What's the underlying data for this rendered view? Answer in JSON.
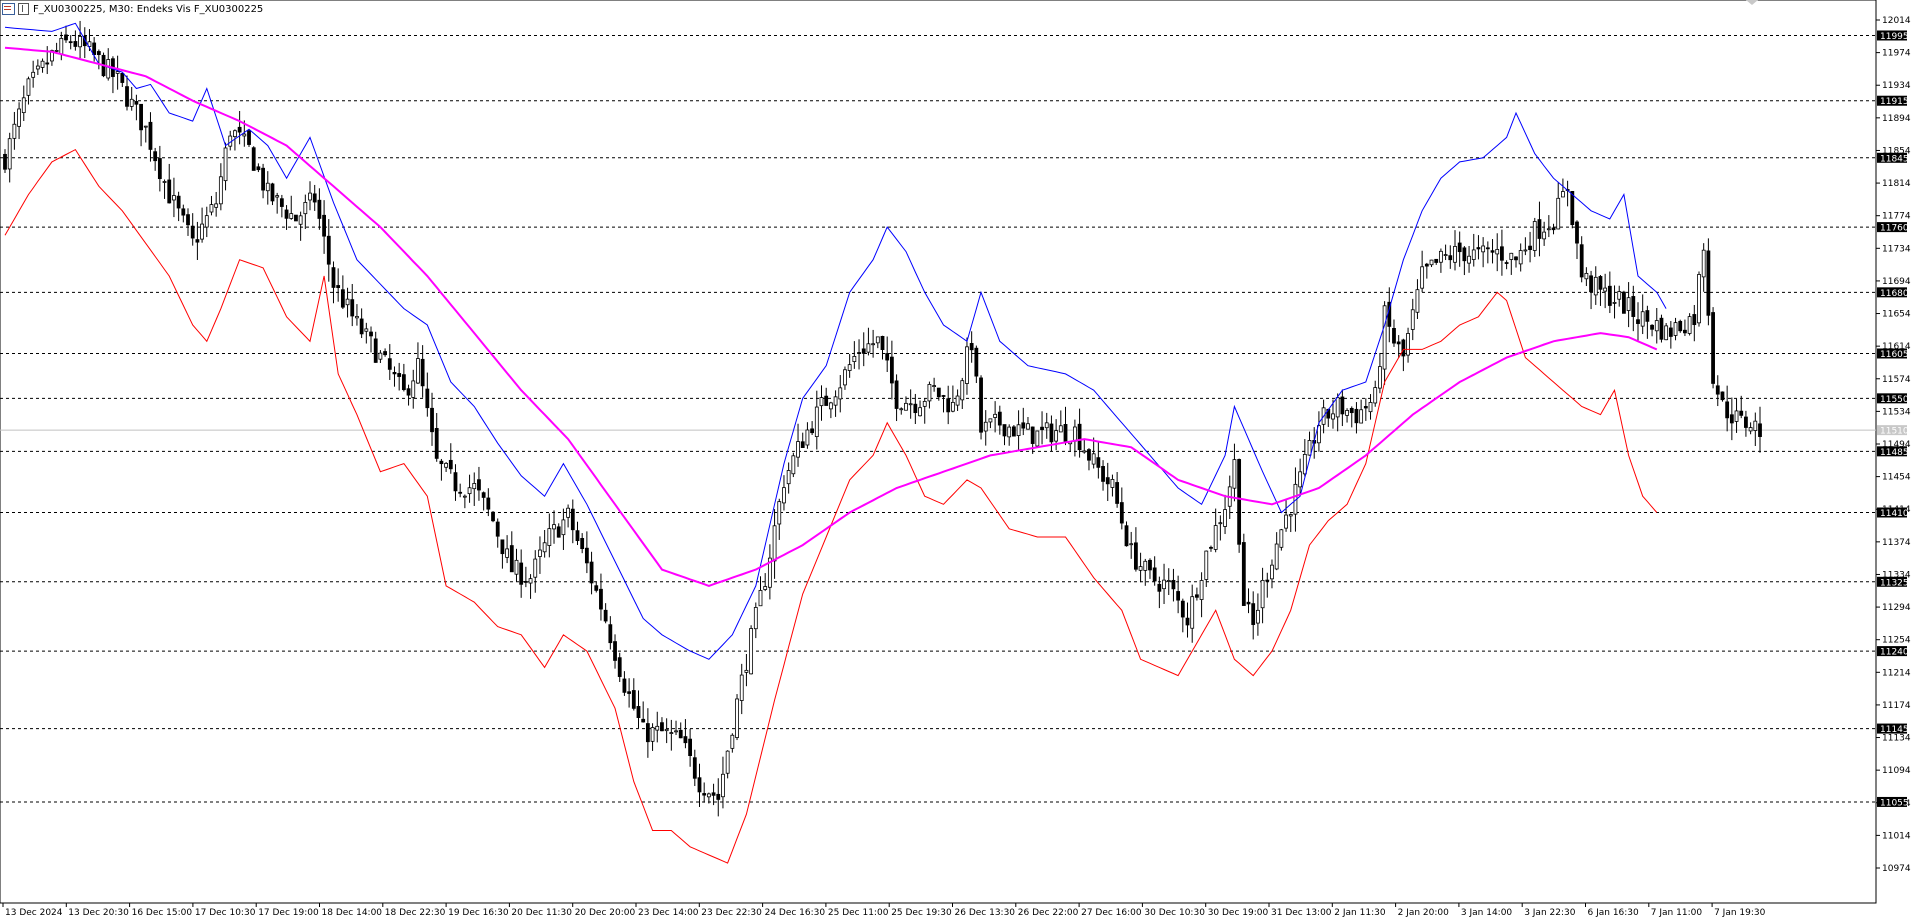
{
  "header": {
    "symbol_line": "F_XU0300225, M30:  Endeks Vis F_XU0300225"
  },
  "chart_data": {
    "type": "candlestick",
    "title": "F_XU0300225, M30:  Endeks Vis F_XU0300225",
    "ylim": [
      10950,
      12030
    ],
    "y_ticks": [
      12014,
      11974,
      11934,
      11894,
      11854,
      11814,
      11774,
      11734,
      11694,
      11654,
      11614,
      11574,
      11534,
      11494,
      11454,
      11414,
      11374,
      11334,
      11294,
      11254,
      11214,
      11174,
      11134,
      11094,
      11054,
      11014,
      10974
    ],
    "x_tick_labels": [
      "13 Dec 2024",
      "13 Dec 20:30",
      "16 Dec 15:00",
      "17 Dec 10:30",
      "17 Dec 19:00",
      "18 Dec 14:00",
      "18 Dec 22:30",
      "19 Dec 16:30",
      "20 Dec 11:30",
      "20 Dec 20:00",
      "23 Dec 14:00",
      "23 Dec 22:30",
      "24 Dec 16:30",
      "25 Dec 11:00",
      "25 Dec 19:30",
      "26 Dec 13:30",
      "26 Dec 22:00",
      "27 Dec 16:00",
      "30 Dec 10:30",
      "30 Dec 19:00",
      "31 Dec 13:00",
      "2 Jan 11:30",
      "2 Jan 20:00",
      "3 Jan 14:00",
      "3 Jan 22:30",
      "6 Jan 16:30",
      "7 Jan 11:00",
      "7 Jan 19:30"
    ],
    "horizontal_levels": [
      11995,
      11915,
      11845,
      11760,
      11680,
      11605,
      11550,
      11485,
      11410,
      11325,
      11240,
      11145,
      11055
    ],
    "current_price_label": "11510",
    "current_price": 11511,
    "colors": {
      "candles": "#000000",
      "upper_band": "#0000ff",
      "lower_band": "#ff0000",
      "moving_average": "#ff00ff",
      "levels": "#000000"
    },
    "close_path": [
      [
        0,
        11845
      ],
      [
        5,
        11930
      ],
      [
        10,
        11970
      ],
      [
        14,
        11990
      ],
      [
        18,
        11975
      ],
      [
        24,
        11940
      ],
      [
        30,
        11880
      ],
      [
        35,
        11800
      ],
      [
        40,
        11740
      ],
      [
        45,
        11790
      ],
      [
        48,
        11880
      ],
      [
        52,
        11855
      ],
      [
        56,
        11800
      ],
      [
        62,
        11770
      ],
      [
        66,
        11795
      ],
      [
        70,
        11690
      ],
      [
        75,
        11640
      ],
      [
        80,
        11600
      ],
      [
        85,
        11555
      ],
      [
        88,
        11590
      ],
      [
        92,
        11470
      ],
      [
        96,
        11445
      ],
      [
        100,
        11440
      ],
      [
        104,
        11400
      ],
      [
        108,
        11340
      ],
      [
        112,
        11330
      ],
      [
        116,
        11380
      ],
      [
        120,
        11405
      ],
      [
        124,
        11345
      ],
      [
        128,
        11280
      ],
      [
        132,
        11200
      ],
      [
        136,
        11140
      ],
      [
        140,
        11140
      ],
      [
        144,
        11130
      ],
      [
        148,
        11080
      ],
      [
        152,
        11060
      ],
      [
        155,
        11150
      ],
      [
        158,
        11230
      ],
      [
        162,
        11330
      ],
      [
        166,
        11450
      ],
      [
        170,
        11500
      ],
      [
        174,
        11540
      ],
      [
        178,
        11570
      ],
      [
        182,
        11610
      ],
      [
        186,
        11620
      ],
      [
        190,
        11550
      ],
      [
        194,
        11545
      ],
      [
        198,
        11560
      ],
      [
        202,
        11540
      ],
      [
        206,
        11620
      ],
      [
        208,
        11510
      ],
      [
        212,
        11520
      ],
      [
        216,
        11510
      ],
      [
        220,
        11505
      ],
      [
        224,
        11510
      ],
      [
        228,
        11510
      ],
      [
        232,
        11470
      ],
      [
        236,
        11440
      ],
      [
        240,
        11360
      ],
      [
        244,
        11330
      ],
      [
        248,
        11320
      ],
      [
        252,
        11280
      ],
      [
        256,
        11360
      ],
      [
        260,
        11420
      ],
      [
        262,
        11470
      ],
      [
        264,
        11300
      ],
      [
        266,
        11270
      ],
      [
        268,
        11320
      ],
      [
        272,
        11390
      ],
      [
        276,
        11450
      ],
      [
        280,
        11520
      ],
      [
        284,
        11540
      ],
      [
        288,
        11530
      ],
      [
        292,
        11550
      ],
      [
        294,
        11650
      ],
      [
        296,
        11620
      ],
      [
        298,
        11600
      ],
      [
        302,
        11700
      ],
      [
        306,
        11720
      ],
      [
        310,
        11730
      ],
      [
        314,
        11725
      ],
      [
        318,
        11730
      ],
      [
        322,
        11720
      ],
      [
        326,
        11755
      ],
      [
        330,
        11770
      ],
      [
        333,
        11810
      ],
      [
        336,
        11700
      ],
      [
        340,
        11680
      ],
      [
        344,
        11670
      ],
      [
        348,
        11650
      ],
      [
        352,
        11640
      ],
      [
        354,
        11630
      ],
      [
        357,
        11640
      ],
      [
        360,
        11650
      ],
      [
        362,
        11740
      ],
      [
        364,
        11580
      ],
      [
        366,
        11540
      ],
      [
        368,
        11530
      ],
      [
        370,
        11520
      ],
      [
        372,
        11520
      ],
      [
        374,
        11511
      ]
    ],
    "upper_band_path": [
      [
        0,
        12005
      ],
      [
        10,
        12000
      ],
      [
        15,
        12010
      ],
      [
        20,
        11960
      ],
      [
        25,
        11950
      ],
      [
        28,
        11930
      ],
      [
        31,
        11935
      ],
      [
        35,
        11900
      ],
      [
        40,
        11890
      ],
      [
        43,
        11930
      ],
      [
        47,
        11860
      ],
      [
        52,
        11880
      ],
      [
        56,
        11860
      ],
      [
        60,
        11820
      ],
      [
        65,
        11870
      ],
      [
        70,
        11790
      ],
      [
        75,
        11720
      ],
      [
        80,
        11690
      ],
      [
        85,
        11660
      ],
      [
        90,
        11640
      ],
      [
        95,
        11570
      ],
      [
        100,
        11540
      ],
      [
        105,
        11495
      ],
      [
        110,
        11455
      ],
      [
        115,
        11430
      ],
      [
        119,
        11470
      ],
      [
        124,
        11420
      ],
      [
        130,
        11350
      ],
      [
        136,
        11280
      ],
      [
        140,
        11260
      ],
      [
        146,
        11240
      ],
      [
        150,
        11230
      ],
      [
        155,
        11260
      ],
      [
        160,
        11320
      ],
      [
        166,
        11470
      ],
      [
        170,
        11550
      ],
      [
        175,
        11590
      ],
      [
        180,
        11680
      ],
      [
        185,
        11720
      ],
      [
        188,
        11760
      ],
      [
        192,
        11730
      ],
      [
        196,
        11680
      ],
      [
        200,
        11640
      ],
      [
        205,
        11620
      ],
      [
        208,
        11680
      ],
      [
        212,
        11620
      ],
      [
        218,
        11590
      ],
      [
        226,
        11580
      ],
      [
        232,
        11560
      ],
      [
        238,
        11520
      ],
      [
        244,
        11480
      ],
      [
        250,
        11440
      ],
      [
        255,
        11420
      ],
      [
        260,
        11480
      ],
      [
        262,
        11540
      ],
      [
        265,
        11500
      ],
      [
        268,
        11460
      ],
      [
        272,
        11410
      ],
      [
        276,
        11430
      ],
      [
        280,
        11520
      ],
      [
        285,
        11560
      ],
      [
        290,
        11570
      ],
      [
        294,
        11640
      ],
      [
        298,
        11720
      ],
      [
        302,
        11780
      ],
      [
        306,
        11820
      ],
      [
        310,
        11840
      ],
      [
        315,
        11845
      ],
      [
        320,
        11870
      ],
      [
        322,
        11900
      ],
      [
        326,
        11850
      ],
      [
        330,
        11820
      ],
      [
        334,
        11800
      ],
      [
        338,
        11780
      ],
      [
        342,
        11770
      ],
      [
        345,
        11800
      ],
      [
        348,
        11700
      ],
      [
        352,
        11680
      ],
      [
        354,
        11660
      ]
    ],
    "lower_band_path": [
      [
        0,
        11750
      ],
      [
        5,
        11800
      ],
      [
        10,
        11840
      ],
      [
        15,
        11855
      ],
      [
        20,
        11810
      ],
      [
        25,
        11780
      ],
      [
        30,
        11740
      ],
      [
        35,
        11700
      ],
      [
        40,
        11640
      ],
      [
        43,
        11620
      ],
      [
        46,
        11660
      ],
      [
        50,
        11720
      ],
      [
        55,
        11710
      ],
      [
        60,
        11650
      ],
      [
        65,
        11620
      ],
      [
        68,
        11700
      ],
      [
        71,
        11580
      ],
      [
        75,
        11530
      ],
      [
        80,
        11460
      ],
      [
        85,
        11470
      ],
      [
        90,
        11430
      ],
      [
        94,
        11320
      ],
      [
        100,
        11300
      ],
      [
        105,
        11270
      ],
      [
        110,
        11260
      ],
      [
        115,
        11220
      ],
      [
        119,
        11260
      ],
      [
        124,
        11240
      ],
      [
        130,
        11170
      ],
      [
        134,
        11080
      ],
      [
        138,
        11020
      ],
      [
        142,
        11020
      ],
      [
        146,
        11000
      ],
      [
        150,
        10990
      ],
      [
        154,
        10980
      ],
      [
        158,
        11040
      ],
      [
        164,
        11180
      ],
      [
        170,
        11310
      ],
      [
        175,
        11380
      ],
      [
        180,
        11450
      ],
      [
        185,
        11480
      ],
      [
        188,
        11520
      ],
      [
        192,
        11480
      ],
      [
        196,
        11430
      ],
      [
        200,
        11420
      ],
      [
        205,
        11450
      ],
      [
        208,
        11440
      ],
      [
        214,
        11390
      ],
      [
        220,
        11380
      ],
      [
        226,
        11380
      ],
      [
        232,
        11330
      ],
      [
        238,
        11290
      ],
      [
        242,
        11230
      ],
      [
        246,
        11220
      ],
      [
        250,
        11210
      ],
      [
        254,
        11250
      ],
      [
        258,
        11290
      ],
      [
        262,
        11230
      ],
      [
        266,
        11210
      ],
      [
        270,
        11240
      ],
      [
        274,
        11290
      ],
      [
        278,
        11370
      ],
      [
        282,
        11400
      ],
      [
        286,
        11420
      ],
      [
        290,
        11470
      ],
      [
        294,
        11570
      ],
      [
        298,
        11610
      ],
      [
        302,
        11610
      ],
      [
        306,
        11620
      ],
      [
        310,
        11640
      ],
      [
        314,
        11650
      ],
      [
        318,
        11680
      ],
      [
        320,
        11670
      ],
      [
        324,
        11600
      ],
      [
        328,
        11580
      ],
      [
        332,
        11560
      ],
      [
        336,
        11540
      ],
      [
        340,
        11530
      ],
      [
        343,
        11560
      ],
      [
        346,
        11480
      ],
      [
        349,
        11430
      ],
      [
        352,
        11410
      ]
    ],
    "moving_average_path": [
      [
        0,
        11980
      ],
      [
        10,
        11975
      ],
      [
        20,
        11960
      ],
      [
        30,
        11945
      ],
      [
        40,
        11915
      ],
      [
        50,
        11890
      ],
      [
        60,
        11860
      ],
      [
        70,
        11810
      ],
      [
        80,
        11760
      ],
      [
        90,
        11700
      ],
      [
        100,
        11630
      ],
      [
        110,
        11560
      ],
      [
        120,
        11500
      ],
      [
        130,
        11420
      ],
      [
        140,
        11340
      ],
      [
        150,
        11320
      ],
      [
        160,
        11340
      ],
      [
        170,
        11370
      ],
      [
        180,
        11410
      ],
      [
        190,
        11440
      ],
      [
        200,
        11460
      ],
      [
        210,
        11480
      ],
      [
        220,
        11490
      ],
      [
        230,
        11500
      ],
      [
        240,
        11490
      ],
      [
        250,
        11450
      ],
      [
        260,
        11430
      ],
      [
        270,
        11420
      ],
      [
        280,
        11440
      ],
      [
        290,
        11480
      ],
      [
        300,
        11530
      ],
      [
        310,
        11570
      ],
      [
        320,
        11600
      ],
      [
        330,
        11620
      ],
      [
        340,
        11630
      ],
      [
        346,
        11625
      ],
      [
        352,
        11610
      ]
    ],
    "total_bars": 375
  }
}
